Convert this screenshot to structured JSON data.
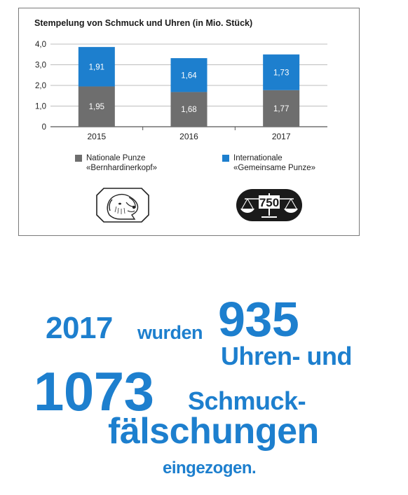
{
  "chart_data": {
    "type": "bar",
    "stacked": true,
    "title": "Stempelung von Schmuck und Uhren (in Mio. Stück)",
    "categories": [
      "2015",
      "2016",
      "2017"
    ],
    "series": [
      {
        "name": "Nationale Punze «Bernhardinerkopf»",
        "values": [
          1.95,
          1.68,
          1.77
        ],
        "labels": [
          "1,95",
          "1,68",
          "1,77"
        ],
        "color": "#6e6e6e"
      },
      {
        "name": "Internationale «Gemeinsame Punze»",
        "values": [
          1.91,
          1.64,
          1.73
        ],
        "labels": [
          "1,91",
          "1,64",
          "1,73"
        ],
        "color": "#1d7fce"
      }
    ],
    "yticks": [
      "0",
      "1,0",
      "2,0",
      "3,0",
      "4,0"
    ],
    "ylim": [
      0,
      4
    ],
    "grid": true,
    "legend_position": "bottom"
  },
  "legend": {
    "national": {
      "line1": "Nationale Punze",
      "line2": "«Bernhardinerkopf»"
    },
    "international": {
      "line1": "Internationale",
      "line2": "«Gemeinsame Punze»"
    }
  },
  "logos": {
    "international_text": "750",
    "national_icon": "st-bernard-head-icon",
    "international_icon": "scales-icon"
  },
  "headline": {
    "year": "2017",
    "wurden": "wurden",
    "watches_count": "935",
    "watches_text": "Uhren- und",
    "jewelry_count": "1073",
    "jewelry_text1": "Schmuck-",
    "jewelry_text2": "fälschungen",
    "end": "eingezogen."
  },
  "colors": {
    "accent": "#1d7fce",
    "gray_bar": "#6e6e6e"
  }
}
